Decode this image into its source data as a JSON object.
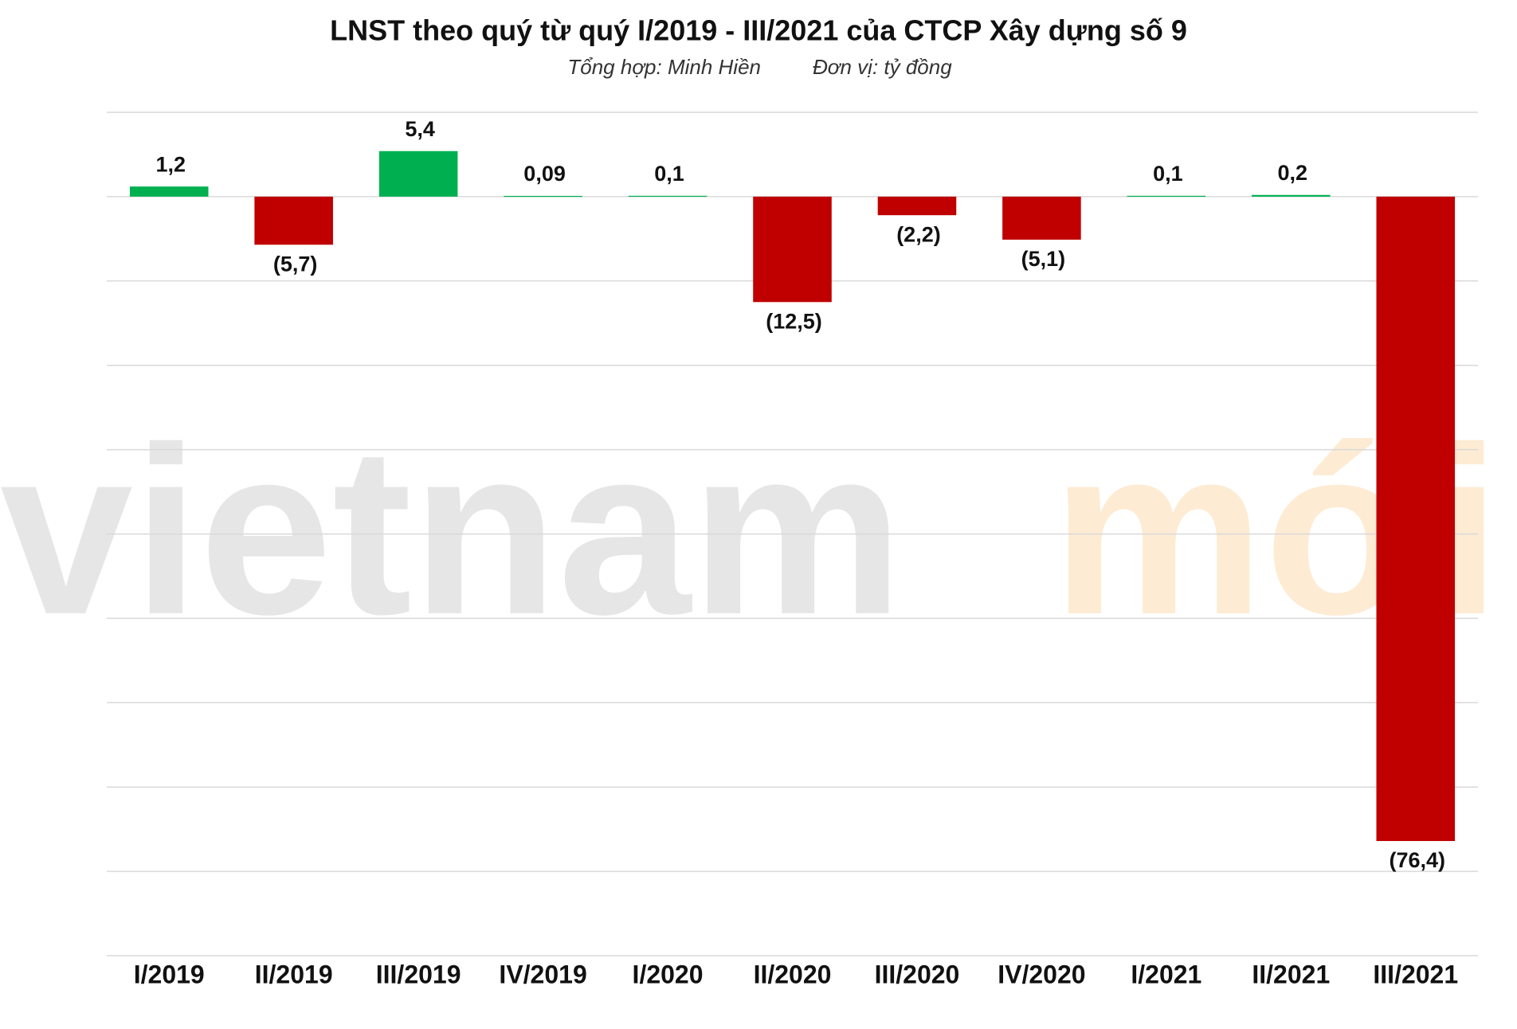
{
  "chart_data": {
    "type": "bar",
    "title": "LNST theo quý từ quý I/2019 - III/2021 của CTCP Xây dựng số 9",
    "source": "Tổng hợp: Minh Hiền",
    "unit": "Đơn vị: tỷ đồng",
    "watermark": [
      "vietnam",
      "mới"
    ],
    "categories": [
      "I/2019",
      "II/2019",
      "III/2019",
      "IV/2019",
      "I/2020",
      "II/2020",
      "III/2020",
      "IV/2020",
      "I/2021",
      "II/2021",
      "III/2021"
    ],
    "values": [
      1.2,
      -5.7,
      5.4,
      0.09,
      0.1,
      -12.5,
      -2.2,
      -5.1,
      0.1,
      0.2,
      -76.4
    ],
    "value_labels": [
      "1,2",
      "(5,7)",
      "5,4",
      "0,09",
      "0,1",
      "(12,5)",
      "(2,2)",
      "(5,1)",
      "0,1",
      "0,2",
      "(76,4)"
    ],
    "positive_color": "#00b050",
    "negative_color": "#c00000",
    "ylim": [
      -90,
      10
    ],
    "yticks": [
      -90,
      -80,
      -70,
      -60,
      -50,
      -40,
      -30,
      -20,
      -10,
      0,
      10
    ],
    "grid": true
  }
}
